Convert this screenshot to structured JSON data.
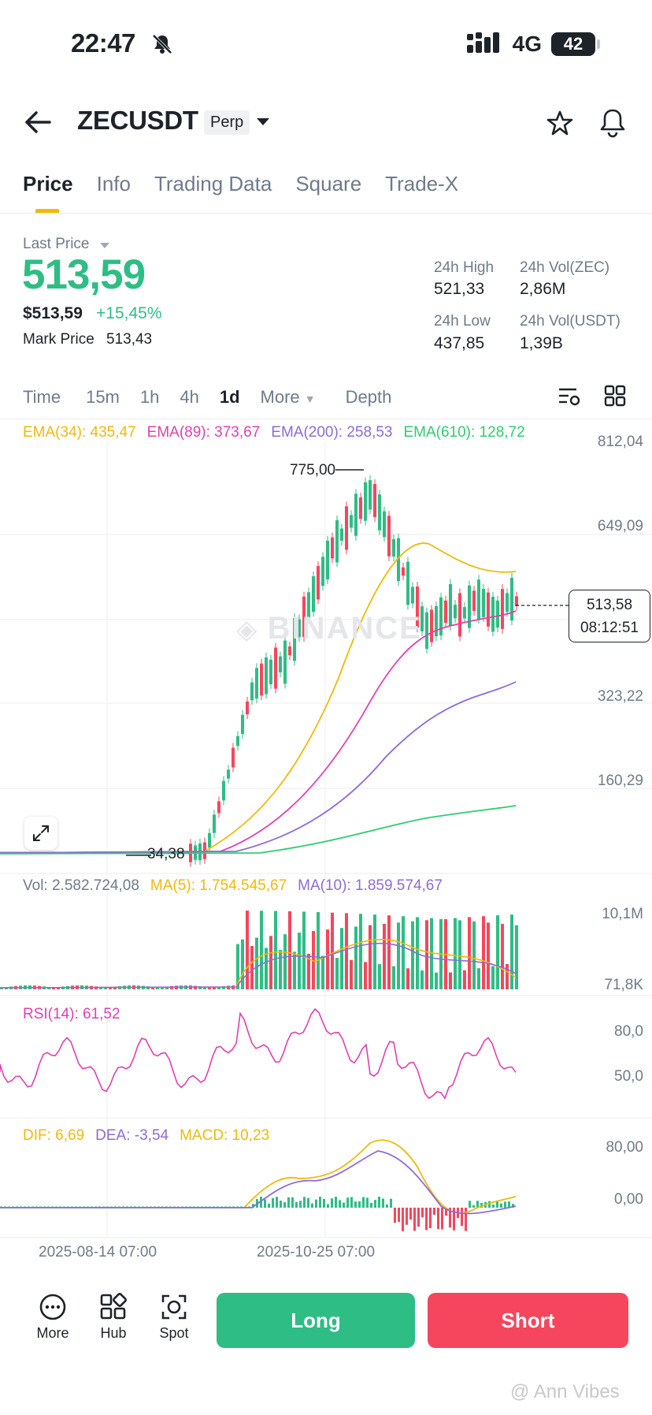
{
  "status_bar": {
    "time": "22:47",
    "network": "4G",
    "battery": "42"
  },
  "header": {
    "symbol": "ZECUSDT",
    "contract_type": "Perp"
  },
  "tabs": [
    {
      "label": "Price",
      "active": true
    },
    {
      "label": "Info",
      "active": false
    },
    {
      "label": "Trading Data",
      "active": false
    },
    {
      "label": "Square",
      "active": false
    },
    {
      "label": "Trade-X",
      "active": false
    }
  ],
  "ticker": {
    "last_price_label": "Last Price",
    "last_price": "513,59",
    "usd_price": "$513,59",
    "change_pct": "+15,45%",
    "mark_price_label": "Mark Price",
    "mark_price": "513,43",
    "high_label": "24h High",
    "high": "521,33",
    "vol_zec_label": "24h Vol(ZEC)",
    "vol_zec": "2,86M",
    "low_label": "24h Low",
    "low": "437,85",
    "vol_usdt_label": "24h Vol(USDT)",
    "vol_usdt": "1,39B"
  },
  "intervals": [
    {
      "label": "Time",
      "active": false
    },
    {
      "label": "15m",
      "active": false
    },
    {
      "label": "1h",
      "active": false
    },
    {
      "label": "4h",
      "active": false
    },
    {
      "label": "1d",
      "active": true
    },
    {
      "label": "More",
      "active": false
    },
    {
      "label": "Depth",
      "active": false
    }
  ],
  "chart": {
    "ema": [
      {
        "label": "EMA(34): 435,47",
        "color": "#f0b90b"
      },
      {
        "label": "EMA(89): 373,67",
        "color": "#e040b0"
      },
      {
        "label": "EMA(200): 258,53",
        "color": "#8e6bd8"
      },
      {
        "label": "EMA(610): 128,72",
        "color": "#2ecc71"
      }
    ],
    "price_axis": [
      "812,04",
      "649,09",
      "323,22",
      "160,29"
    ],
    "max_label": "775,00",
    "min_label": "34,38",
    "current_price": "513,58",
    "countdown": "08:12:51",
    "watermark": "BINANCE",
    "volume": {
      "vol_label": "Vol: 2.582.724,08",
      "ma5_label": "MA(5): 1.754.545,67",
      "ma10_label": "MA(10): 1.859.574,67",
      "axis": [
        "10,1M",
        "71,8K"
      ]
    },
    "rsi": {
      "label": "RSI(14): 61,52",
      "axis": [
        "80,0",
        "50,0"
      ]
    },
    "macd": {
      "dif_label": "DIF: 6,69",
      "dea_label": "DEA: -3,54",
      "macd_label": "MACD: 10,23",
      "axis": [
        "80,00",
        "0,00"
      ]
    },
    "dates": [
      "2025-08-14 07:00",
      "2025-10-25 07:00"
    ]
  },
  "chart_data": {
    "type": "candlestick",
    "symbol": "ZECUSDT",
    "interval": "1d",
    "y_range": [
      34.38,
      812.04
    ],
    "max_price": 775.0,
    "min_price": 34.38,
    "last_price": 513.58,
    "ema": {
      "EMA(34)": 435.47,
      "EMA(89)": 373.67,
      "EMA(200)": 258.53,
      "EMA(610)": 128.72
    },
    "x_ticks": [
      "2025-08-14 07:00",
      "2025-10-25 07:00"
    ]
  },
  "bottom_bar": {
    "more": "More",
    "hub": "Hub",
    "spot": "Spot",
    "long": "Long",
    "short": "Short"
  },
  "watermark_text": "@ Ann Vibes",
  "colors": {
    "up": "#2ebd85",
    "down": "#f6465d",
    "accent": "#f0b90b"
  }
}
